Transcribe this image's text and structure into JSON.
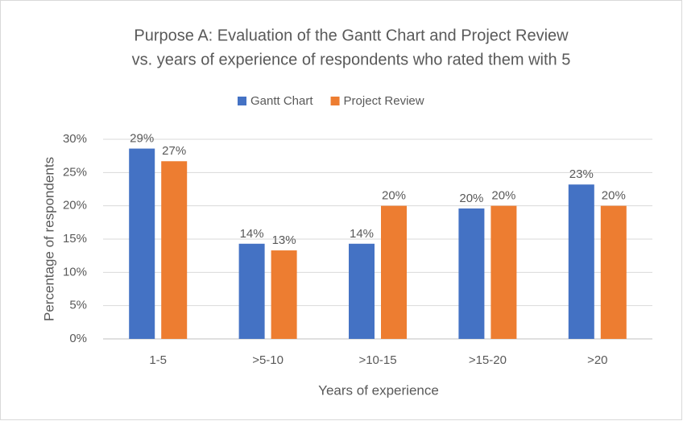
{
  "chart_data": {
    "type": "bar",
    "title": [
      "Purpose A: Evaluation of the Gantt Chart and Project Review",
      "vs. years of experience of respondents who rated them with 5"
    ],
    "x_label": "Years of experience",
    "y_label": "Percentage of respondents",
    "categories": [
      "1-5",
      ">5-10",
      ">10-15",
      ">15-20",
      ">20"
    ],
    "series": [
      {
        "name": "Gantt Chart",
        "color": "#4472c4",
        "values": [
          28.6,
          14.3,
          14.3,
          19.6,
          23.2
        ],
        "value_labels": [
          "29%",
          "14%",
          "14%",
          "20%",
          "23%"
        ]
      },
      {
        "name": "Project Review",
        "color": "#ed7d31",
        "values": [
          26.7,
          13.3,
          20,
          20,
          20
        ],
        "value_labels": [
          "27%",
          "13%",
          "20%",
          "20%",
          "20%"
        ]
      }
    ],
    "ylim": [
      0,
      30
    ],
    "yticks": [
      {
        "value": 0,
        "label": "0%"
      },
      {
        "value": 5,
        "label": "5%"
      },
      {
        "value": 10,
        "label": "10%"
      },
      {
        "value": 15,
        "label": "15%"
      },
      {
        "value": 20,
        "label": "20%"
      },
      {
        "value": 25,
        "label": "25%"
      },
      {
        "value": 30,
        "label": "30%"
      }
    ],
    "grid": true,
    "legend": "top"
  }
}
